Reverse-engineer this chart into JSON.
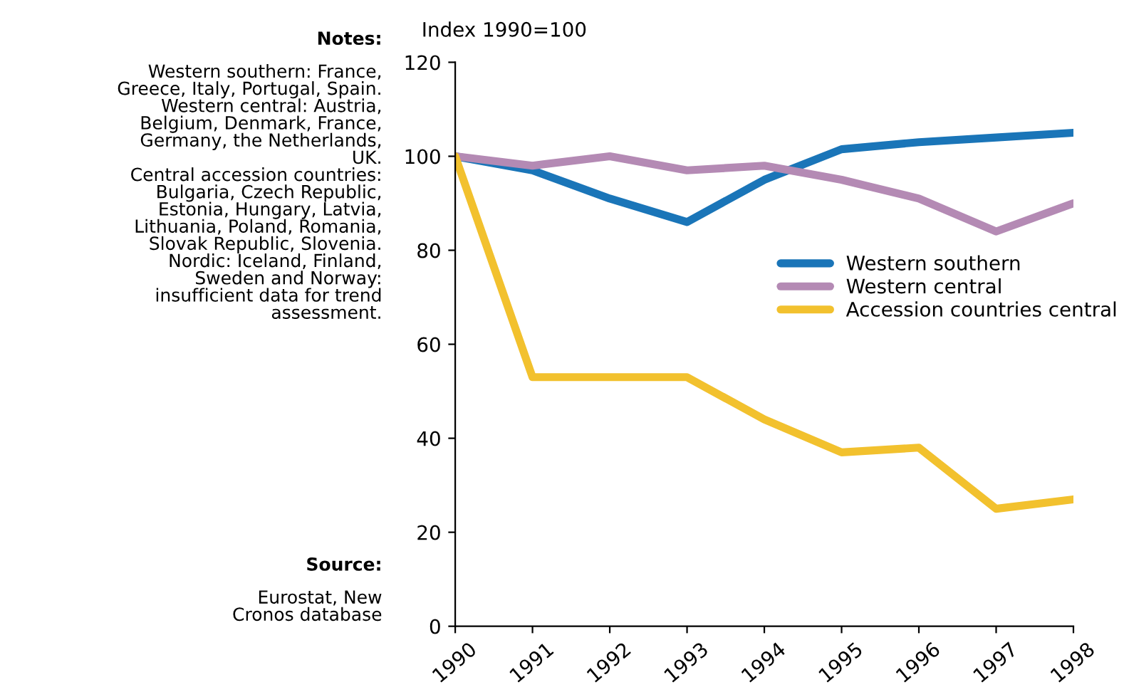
{
  "chart_data": {
    "type": "line",
    "ylabel": "Index 1990=100",
    "categories": [
      "1990",
      "1991",
      "1992",
      "1993",
      "1994",
      "1995",
      "1996",
      "1997",
      "1998"
    ],
    "series": [
      {
        "name": "Western southern",
        "color": "#1a75b8",
        "values": [
          100,
          97,
          91,
          86,
          95,
          101.5,
          103,
          104,
          105
        ]
      },
      {
        "name": "Western central",
        "color": "#b48ab4",
        "values": [
          100,
          98,
          100,
          97,
          98,
          95,
          91,
          84,
          90
        ]
      },
      {
        "name": "Accession countries central",
        "color": "#f2c12e",
        "values": [
          100,
          53,
          53,
          53,
          44,
          37,
          38,
          25,
          27
        ]
      }
    ],
    "ylim": [
      0,
      120
    ],
    "yticks": [
      0,
      20,
      40,
      60,
      80,
      100,
      120
    ],
    "grid": false,
    "legend": "right",
    "line_style": "solid",
    "marker": "none",
    "annotations": [
      "Notes:",
      "Western southern: France,\nGreece, Italy, Portugal, Spain.\nWestern central: Austria,\nBelgium, Denmark, France,\nGermany, the Netherlands,\nUK.\nCentral accession countries:\nBulgaria, Czech Republic,\nEstonia, Hungary, Latvia,\nLithuania, Poland, Romania,\nSlovak Republic, Slovenia.\nNordic: Iceland, Finland,\nSweden and Norway:\ninsufficient data for trend\nassessment.",
      "Source:",
      "Eurostat, New\nCronos database"
    ]
  }
}
